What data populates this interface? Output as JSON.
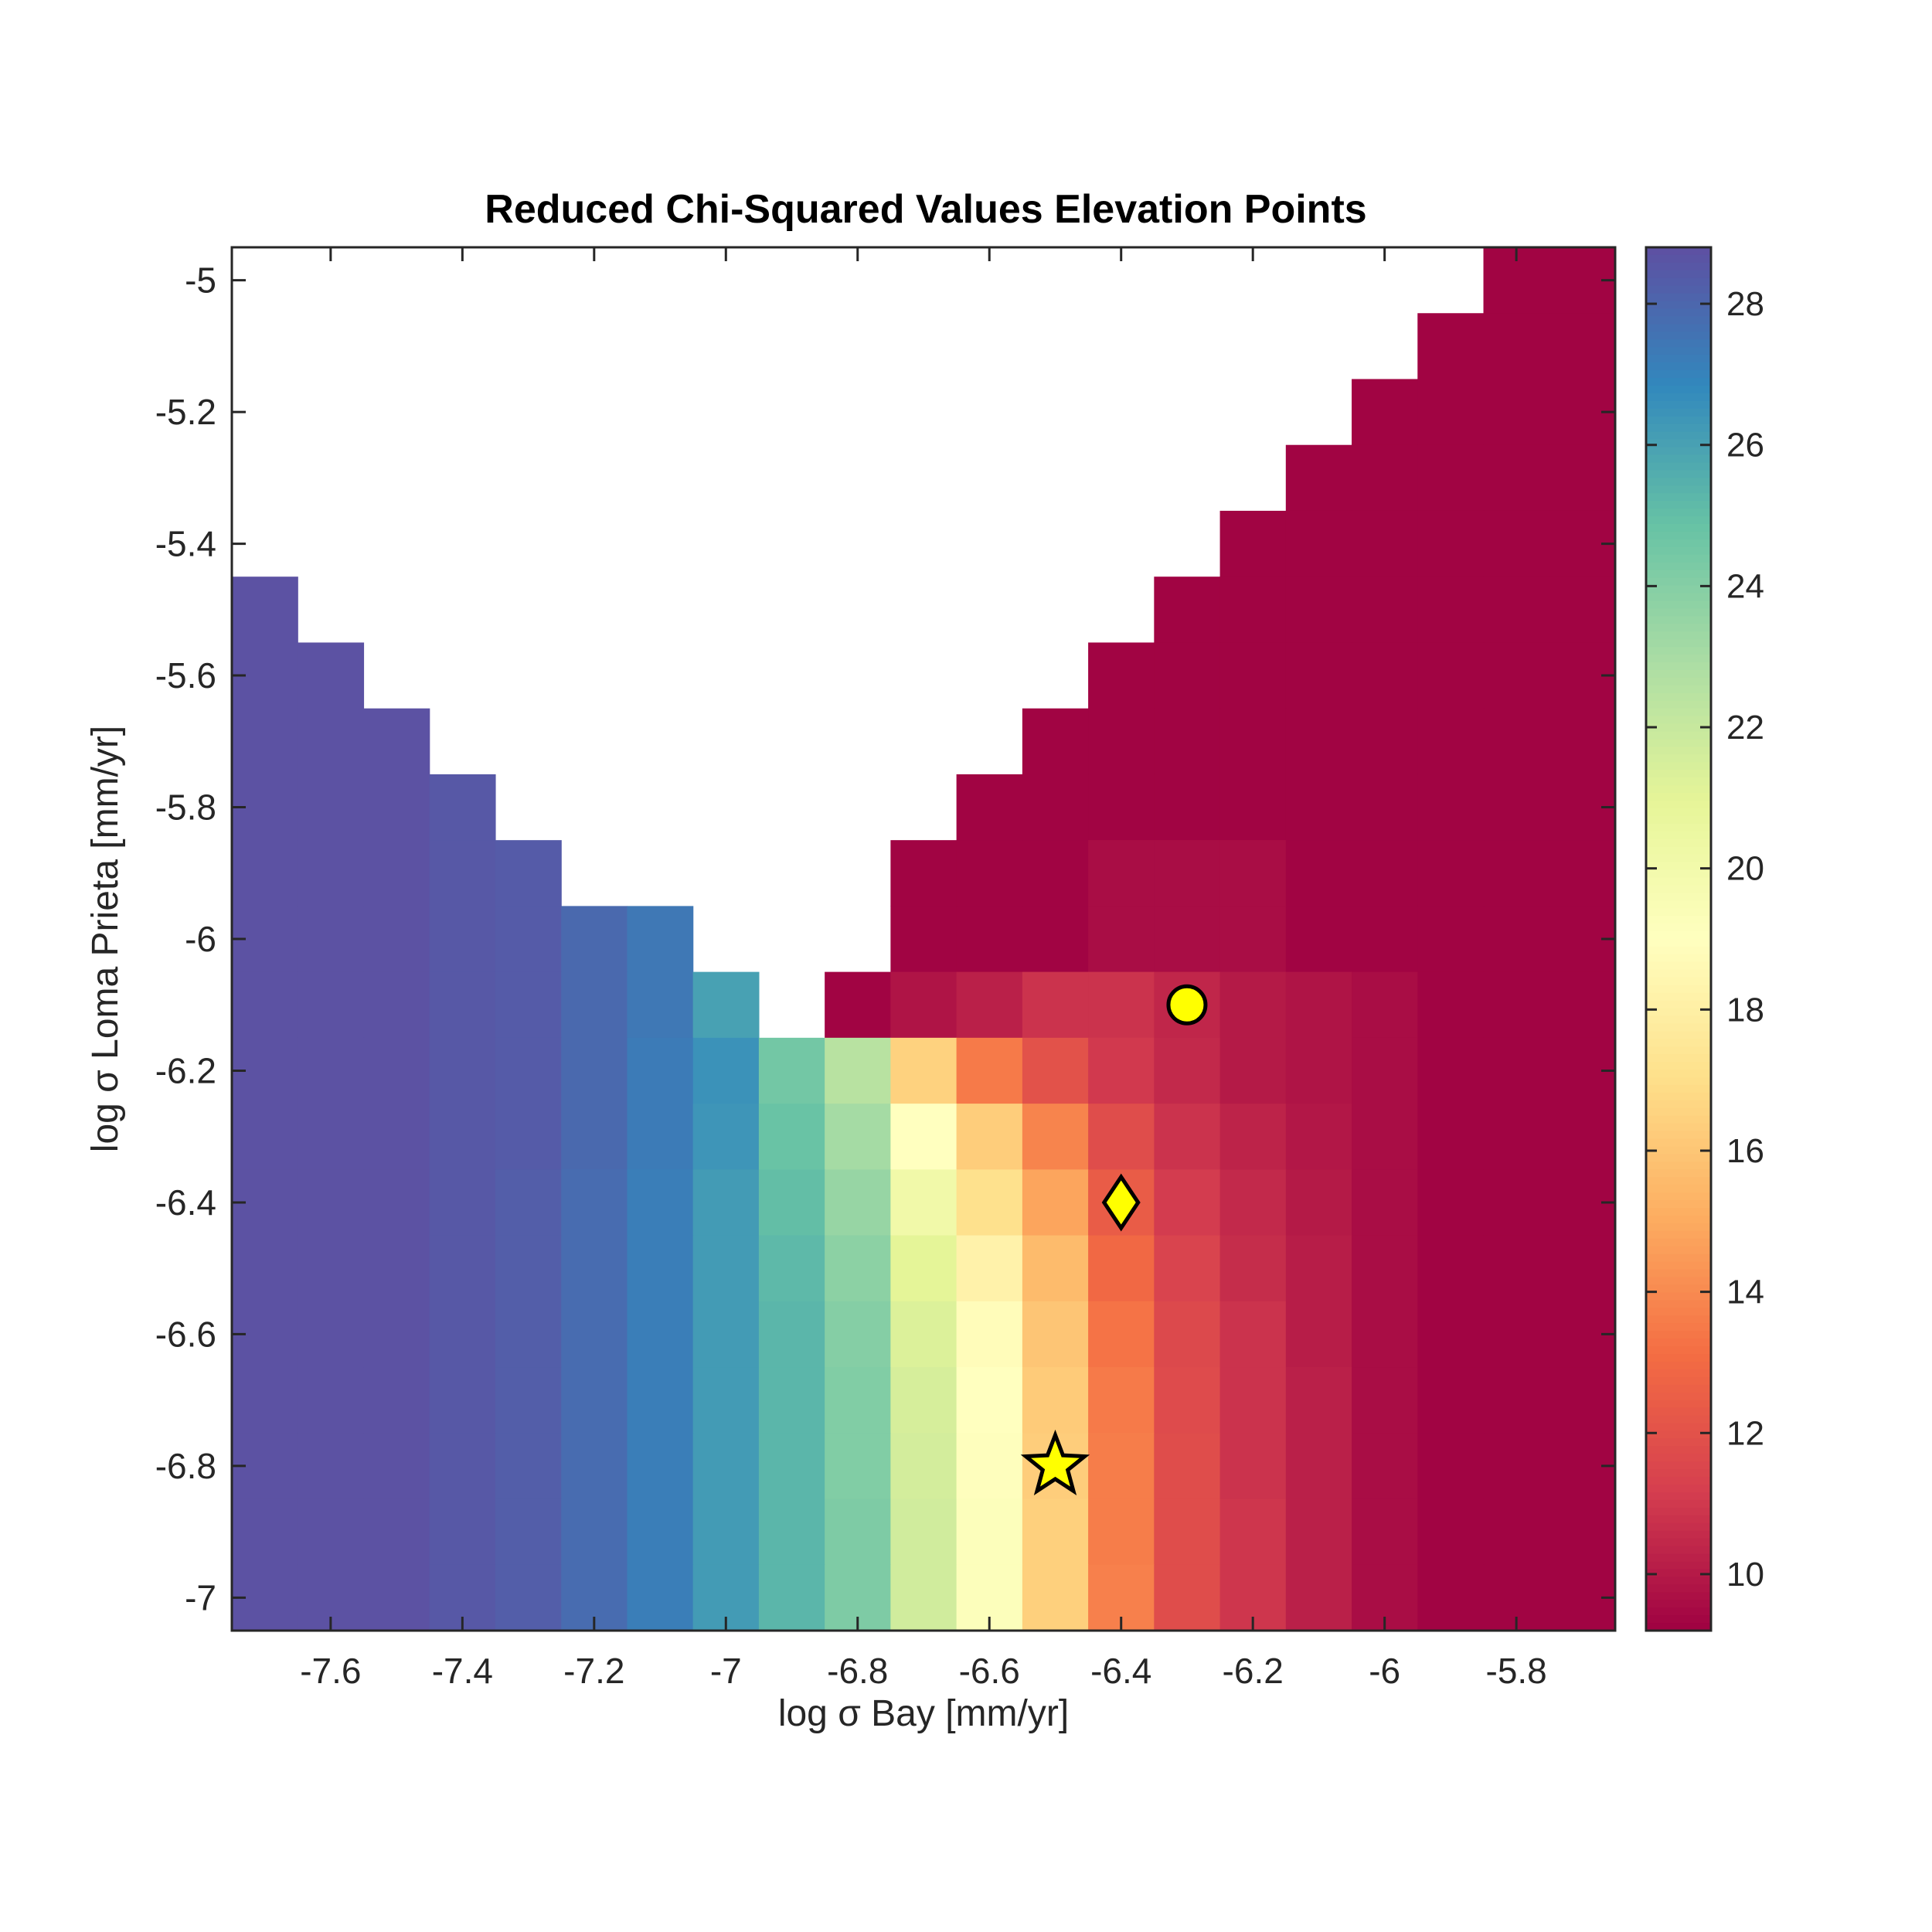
{
  "chart_data": {
    "type": "heatmap",
    "title": "Reduced Chi-Squared Values Elevation Points",
    "xlabel": "log σ Bay [mm/yr]",
    "ylabel": "log σ Loma Prieta [mm/yr]",
    "xlim": [
      -7.75,
      -5.65
    ],
    "ylim": [
      -7.05,
      -4.95
    ],
    "x_ticks": [
      -7.6,
      -7.4,
      -7.2,
      -7,
      -6.8,
      -6.6,
      -6.4,
      -6.2,
      -6,
      -5.8
    ],
    "y_ticks": [
      -5,
      -5.2,
      -5.4,
      -5.6,
      -5.8,
      -6,
      -6.2,
      -6.4,
      -6.6,
      -6.8,
      -7
    ],
    "colorbar": {
      "range": [
        9.2,
        28.8
      ],
      "ticks": [
        10,
        12,
        14,
        16,
        18,
        20,
        22,
        24,
        26,
        28
      ]
    },
    "grid": {
      "x": [
        -7.7,
        -7.6,
        -7.5,
        -7.4,
        -7.3,
        -7.2,
        -7.1,
        -7.0,
        -6.9,
        -6.8,
        -6.7,
        -6.6,
        -6.5,
        -6.4,
        -6.3,
        -6.2,
        -6.1,
        -6.0,
        -5.9,
        -5.8,
        -5.7
      ],
      "y": [
        -5.0,
        -5.1,
        -5.2,
        -5.3,
        -5.4,
        -5.5,
        -5.6,
        -5.7,
        -5.8,
        -5.9,
        -6.0,
        -6.1,
        -6.2,
        -6.3,
        -6.4,
        -6.5,
        -6.6,
        -6.7,
        -6.8,
        -6.9,
        -7.0
      ],
      "z": [
        [
          null,
          null,
          null,
          null,
          null,
          null,
          null,
          null,
          null,
          null,
          null,
          null,
          null,
          null,
          null,
          null,
          null,
          null,
          null,
          9.3,
          9.3
        ],
        [
          null,
          null,
          null,
          null,
          null,
          null,
          null,
          null,
          null,
          null,
          null,
          null,
          null,
          null,
          null,
          null,
          null,
          null,
          9.3,
          9.3,
          9.3
        ],
        [
          null,
          null,
          null,
          null,
          null,
          null,
          null,
          null,
          null,
          null,
          null,
          null,
          null,
          null,
          null,
          null,
          null,
          9.3,
          9.3,
          9.3,
          9.3
        ],
        [
          null,
          null,
          null,
          null,
          null,
          null,
          null,
          null,
          null,
          null,
          null,
          null,
          null,
          null,
          null,
          null,
          9.3,
          9.3,
          9.3,
          9.3,
          9.3
        ],
        [
          null,
          null,
          null,
          null,
          null,
          null,
          null,
          null,
          null,
          null,
          null,
          null,
          null,
          null,
          null,
          9.3,
          9.3,
          9.3,
          9.3,
          9.3,
          9.3
        ],
        [
          28.7,
          null,
          null,
          null,
          null,
          null,
          null,
          null,
          null,
          null,
          null,
          null,
          null,
          null,
          9.3,
          9.3,
          9.3,
          9.3,
          9.3,
          9.3,
          9.3
        ],
        [
          28.7,
          28.7,
          null,
          null,
          null,
          null,
          null,
          null,
          null,
          null,
          null,
          null,
          null,
          9.3,
          9.3,
          9.3,
          9.3,
          9.3,
          9.3,
          9.3,
          9.3
        ],
        [
          28.7,
          28.7,
          28.7,
          null,
          null,
          null,
          null,
          null,
          null,
          null,
          null,
          null,
          9.3,
          9.3,
          9.3,
          9.3,
          9.3,
          9.3,
          9.3,
          9.3,
          9.3
        ],
        [
          28.7,
          28.7,
          28.7,
          28.5,
          null,
          null,
          null,
          null,
          null,
          null,
          null,
          9.3,
          9.3,
          9.3,
          9.3,
          9.3,
          9.3,
          9.3,
          9.3,
          9.3,
          9.3
        ],
        [
          28.7,
          28.7,
          28.7,
          28.5,
          28.4,
          null,
          null,
          null,
          null,
          null,
          9.3,
          9.3,
          9.3,
          9.6,
          9.6,
          9.6,
          9.3,
          9.3,
          9.3,
          9.3,
          9.3
        ],
        [
          28.7,
          28.7,
          28.7,
          28.5,
          28.4,
          27.9,
          27.4,
          null,
          null,
          null,
          9.3,
          9.3,
          9.3,
          9.6,
          9.6,
          9.6,
          9.3,
          9.3,
          9.3,
          9.3,
          9.3
        ],
        [
          28.7,
          28.7,
          28.7,
          28.5,
          28.4,
          27.9,
          27.4,
          26.0,
          null,
          9.3,
          9.8,
          10.2,
          10.8,
          10.8,
          10.4,
          10.0,
          9.8,
          9.6,
          9.3,
          9.3,
          9.3
        ],
        [
          28.7,
          28.7,
          28.7,
          28.5,
          28.4,
          27.9,
          27.3,
          26.5,
          24.5,
          22.5,
          16.5,
          13.5,
          12.0,
          11.0,
          10.5,
          10.0,
          9.8,
          9.6,
          9.3,
          9.3,
          9.3
        ],
        [
          28.7,
          28.7,
          28.7,
          28.5,
          28.4,
          27.9,
          27.3,
          26.4,
          24.8,
          23.1,
          19.0,
          16.3,
          13.8,
          11.8,
          10.8,
          10.3,
          9.9,
          9.6,
          9.3,
          9.3,
          9.3
        ],
        [
          28.7,
          28.7,
          28.7,
          28.5,
          28.3,
          27.8,
          27.2,
          26.2,
          25.0,
          23.5,
          20.1,
          17.1,
          14.8,
          12.4,
          11.1,
          10.5,
          10.0,
          9.6,
          9.3,
          9.3,
          9.3
        ],
        [
          28.7,
          28.7,
          28.7,
          28.5,
          28.3,
          27.8,
          27.2,
          26.2,
          25.2,
          23.8,
          21.0,
          18.2,
          15.6,
          12.9,
          11.4,
          10.6,
          10.1,
          9.6,
          9.3,
          9.3,
          9.3
        ],
        [
          28.7,
          28.7,
          28.7,
          28.5,
          28.3,
          27.8,
          27.2,
          26.2,
          25.3,
          24.0,
          21.3,
          18.8,
          16.0,
          13.3,
          11.6,
          10.8,
          10.1,
          9.6,
          9.3,
          9.3,
          9.3
        ],
        [
          28.7,
          28.7,
          28.7,
          28.5,
          28.3,
          27.8,
          27.2,
          26.2,
          25.3,
          24.1,
          21.5,
          19.0,
          16.2,
          13.5,
          11.7,
          10.8,
          10.2,
          9.6,
          9.3,
          9.3,
          9.3
        ],
        [
          28.7,
          28.7,
          28.7,
          28.5,
          28.3,
          27.8,
          27.2,
          26.2,
          25.3,
          24.1,
          21.6,
          19.1,
          16.3,
          13.6,
          11.8,
          10.8,
          10.2,
          9.6,
          9.3,
          9.3,
          9.3
        ],
        [
          28.7,
          28.7,
          28.7,
          28.5,
          28.3,
          27.8,
          27.2,
          26.2,
          25.3,
          24.2,
          21.7,
          19.2,
          16.4,
          13.6,
          11.8,
          10.9,
          10.2,
          9.6,
          9.3,
          9.3,
          9.3
        ],
        [
          28.7,
          28.7,
          28.7,
          28.5,
          28.3,
          27.8,
          27.2,
          26.2,
          25.3,
          24.2,
          21.7,
          19.2,
          16.4,
          13.7,
          11.8,
          10.9,
          10.2,
          9.6,
          9.3,
          9.3,
          9.3
        ]
      ]
    },
    "markers": [
      {
        "shape": "circle",
        "x": -6.3,
        "y": -6.1,
        "color": "#ffff00"
      },
      {
        "shape": "diamond",
        "x": -6.4,
        "y": -6.4,
        "color": "#ffff00"
      },
      {
        "shape": "star",
        "x": -6.5,
        "y": -6.8,
        "color": "#ffff00"
      }
    ]
  }
}
